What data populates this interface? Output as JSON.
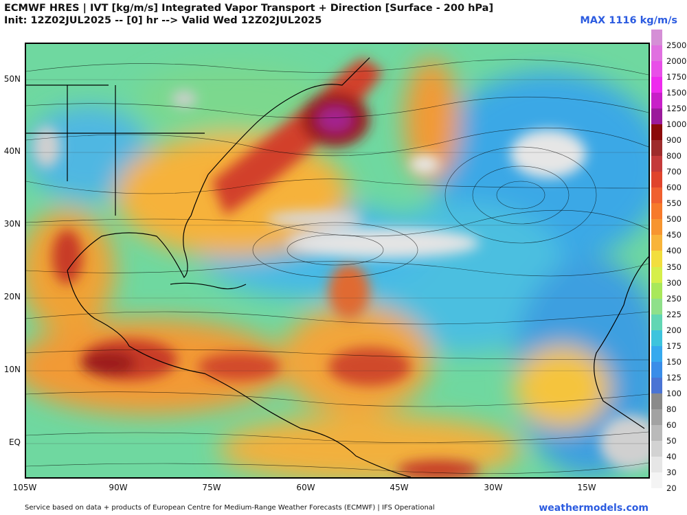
{
  "header": {
    "title": "ECMWF HRES | IVT [kg/m/s] Integrated Vapor Transport + Direction [Surface - 200 hPa]",
    "subtitle": "Init: 12Z02JUL2025 -- [0] hr --> Valid Wed 12Z02JUL2025",
    "max_value": "MAX 1116 kg/m/s"
  },
  "axes": {
    "lat_labels": [
      "50N",
      "40N",
      "30N",
      "20N",
      "10N",
      "EQ"
    ],
    "lon_labels": [
      "105W",
      "90W",
      "75W",
      "60W",
      "45W",
      "30W",
      "15W"
    ]
  },
  "colorbar": {
    "labels": [
      "2500",
      "2000",
      "1750",
      "1500",
      "1250",
      "1000",
      "900",
      "800",
      "700",
      "600",
      "550",
      "500",
      "450",
      "400",
      "350",
      "300",
      "250",
      "225",
      "200",
      "175",
      "150",
      "125",
      "100",
      "80",
      "60",
      "50",
      "40",
      "30",
      "20"
    ],
    "colors": [
      "#d58fd6",
      "#e070e0",
      "#e84fe8",
      "#ee2aee",
      "#c81fc8",
      "#9b1a9b",
      "#8b0a0a",
      "#9e2b2b",
      "#c43a3a",
      "#e0442c",
      "#f06030",
      "#f77a2b",
      "#f79530",
      "#f8b43a",
      "#f2de3e",
      "#d6ef4a",
      "#a9e85a",
      "#8fe08a",
      "#62d6b4",
      "#3ec4dd",
      "#36a9ee",
      "#3a8de8",
      "#4a74d4",
      "#8a8a8a",
      "#a2a2a2",
      "#bababa",
      "#d2d2d2",
      "#e6e6e6",
      "#f4f4f4"
    ]
  },
  "footer": {
    "credit": "Service based on data + products of European Centre for Medium-Range Weather Forecasts (ECMWF) | IFS Operational",
    "site": "weathermodels.com"
  }
}
